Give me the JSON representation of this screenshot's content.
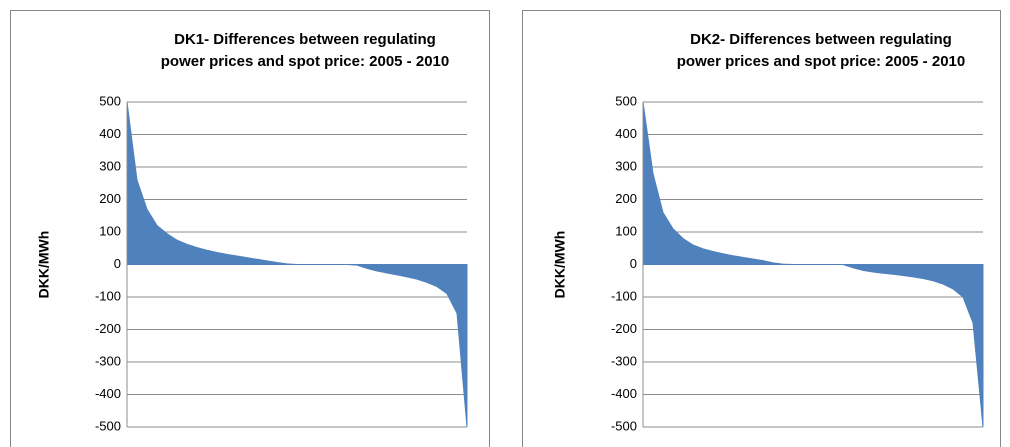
{
  "chart_data": [
    {
      "type": "area",
      "title": [
        "DK1- Differences between regulating",
        "power  prices and spot price:  2005 - 2010"
      ],
      "ylabel": "DKK/MWh",
      "color": "#4f81bd",
      "ylim": [
        -500,
        500
      ],
      "yticks": [
        500,
        400,
        300,
        200,
        100,
        0,
        -100,
        -200,
        -300,
        -400,
        -500
      ],
      "grid": true,
      "values": [
        500,
        260,
        170,
        120,
        95,
        75,
        62,
        52,
        44,
        37,
        31,
        26,
        21,
        16,
        11,
        6,
        2,
        0,
        0,
        0,
        0,
        0,
        0,
        -2,
        -12,
        -20,
        -26,
        -32,
        -38,
        -45,
        -55,
        -68,
        -90,
        -150,
        -500
      ]
    },
    {
      "type": "area",
      "title": [
        "DK2- Differences between regulating",
        "power  prices and spot price:  2005 - 2010"
      ],
      "ylabel": "DKK/MWh",
      "color": "#4f81bd",
      "ylim": [
        -500,
        500
      ],
      "yticks": [
        500,
        400,
        300,
        200,
        100,
        0,
        -100,
        -200,
        -300,
        -400,
        -500
      ],
      "grid": true,
      "values": [
        500,
        280,
        160,
        110,
        80,
        60,
        48,
        40,
        33,
        27,
        22,
        17,
        12,
        5,
        1,
        0,
        0,
        0,
        0,
        0,
        0,
        -10,
        -18,
        -23,
        -27,
        -30,
        -34,
        -38,
        -43,
        -50,
        -60,
        -75,
        -100,
        -180,
        -500
      ]
    }
  ]
}
